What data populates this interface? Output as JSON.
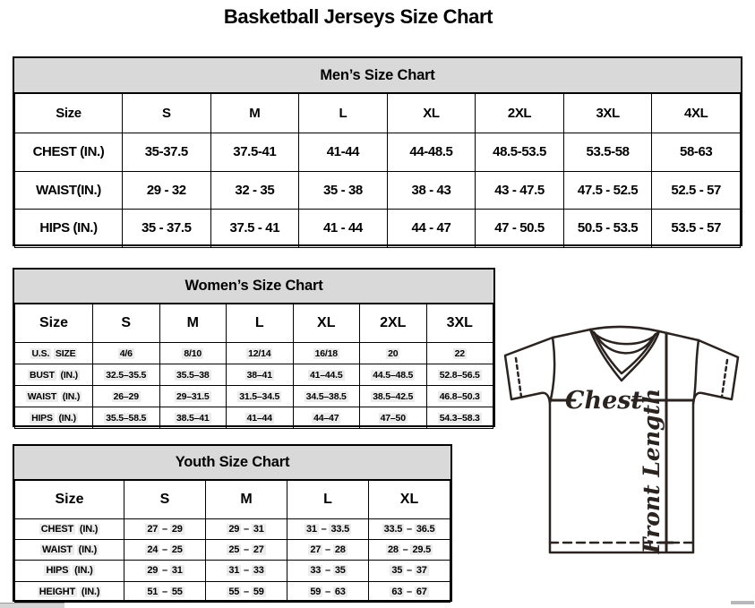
{
  "page": {
    "title": "Basketball Jerseys Size Chart"
  },
  "colors": {
    "header_band_bg": "#d9d9d9",
    "table_border": "#000000",
    "highlight_bg": "#ececec",
    "diagram_stroke": "#2a2320"
  },
  "tables": [
    {
      "id": "men",
      "title": "Men’s Size Chart",
      "columns": [
        "Size",
        "S",
        "M",
        "L",
        "XL",
        "2XL",
        "3XL",
        "4XL"
      ],
      "rows": [
        {
          "label": "CHEST (IN.)",
          "values": [
            "35-37.5",
            "37.5-41",
            "41-44",
            "44-48.5",
            "48.5-53.5",
            "53.5-58",
            "58-63"
          ]
        },
        {
          "label": "WAIST(IN.)",
          "values": [
            "29 - 32",
            "32 - 35",
            "35 - 38",
            "38 - 43",
            "43 - 47.5",
            "47.5 - 52.5",
            "52.5 - 57"
          ]
        },
        {
          "label": "HIPS (IN.)",
          "values": [
            "35 - 37.5",
            "37.5 - 41",
            "41 - 44",
            "44 - 47",
            "47 - 50.5",
            "50.5 - 53.5",
            "53.5 - 57"
          ]
        }
      ]
    },
    {
      "id": "women",
      "title": "Women’s Size Chart",
      "columns": [
        "Size",
        "S",
        "M",
        "L",
        "XL",
        "2XL",
        "3XL"
      ],
      "rows": [
        {
          "label": "U.S. SIZE",
          "values": [
            "4/6",
            "8/10",
            "12/14",
            "16/18",
            "20",
            "22"
          ]
        },
        {
          "label": "BUST (IN.)",
          "values": [
            "32.5–35.5",
            "35.5–38",
            "38–41",
            "41–44.5",
            "44.5–48.5",
            "52.8–56.5"
          ]
        },
        {
          "label": "WAIST (IN.)",
          "values": [
            "26–29",
            "29–31.5",
            "31.5–34.5",
            "34.5–38.5",
            "38.5–42.5",
            "46.8–50.3"
          ]
        },
        {
          "label": "HIPS (IN.)",
          "values": [
            "35.5–58.5",
            "38.5–41",
            "41–44",
            "44–47",
            "47–50",
            "54.3–58.3"
          ]
        }
      ]
    },
    {
      "id": "youth",
      "title": "Youth Size Chart",
      "columns": [
        "Size",
        "S",
        "M",
        "L",
        "XL"
      ],
      "rows": [
        {
          "label": "CHEST (IN.)",
          "values": [
            "27 – 29",
            "29 – 31",
            "31 – 33.5",
            "33.5 – 36.5"
          ]
        },
        {
          "label": "WAIST (IN.)",
          "values": [
            "24 – 25",
            "25 – 27",
            "27 – 28",
            "28 – 29.5"
          ]
        },
        {
          "label": "HIPS (IN.)",
          "values": [
            "29 – 31",
            "31 – 33",
            "33 – 35",
            "35 – 37"
          ]
        },
        {
          "label": "HEIGHT (IN.)",
          "values": [
            "51 – 55",
            "55 – 59",
            "59 – 63",
            "63 – 67"
          ]
        }
      ]
    }
  ],
  "diagram": {
    "chest_label": "Chest",
    "front_length_label": "Front Length"
  }
}
